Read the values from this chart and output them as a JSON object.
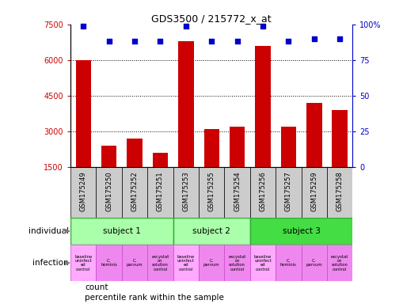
{
  "title": "GDS3500 / 215772_x_at",
  "samples": [
    "GSM175249",
    "GSM175250",
    "GSM175252",
    "GSM175251",
    "GSM175253",
    "GSM175255",
    "GSM175254",
    "GSM175256",
    "GSM175257",
    "GSM175259",
    "GSM175258"
  ],
  "counts": [
    6000,
    2400,
    2700,
    2100,
    6800,
    3100,
    3200,
    6600,
    3200,
    4200,
    3900
  ],
  "percentile_ranks": [
    99,
    88,
    88,
    88,
    99,
    88,
    88,
    99,
    88,
    90,
    90
  ],
  "ylim_left": [
    1500,
    7500
  ],
  "ylim_right": [
    0,
    100
  ],
  "yticks_left": [
    1500,
    3000,
    4500,
    6000,
    7500
  ],
  "yticks_right": [
    0,
    25,
    50,
    75,
    100
  ],
  "bar_color": "#cc0000",
  "dot_color": "#0000cc",
  "gridlines_at": [
    3000,
    4500,
    6000
  ],
  "subjects": [
    {
      "label": "subject 1",
      "start": 0,
      "end": 4,
      "color": "#aaffaa"
    },
    {
      "label": "subject 2",
      "start": 4,
      "end": 7,
      "color": "#aaffaa"
    },
    {
      "label": "subject 3",
      "start": 7,
      "end": 11,
      "color": "#44dd44"
    }
  ],
  "infections": [
    {
      "label": "baseline\nuninfect\ned\ncontrol",
      "col": 0,
      "color": "#ffaaff"
    },
    {
      "label": "C.\nhominis",
      "col": 1,
      "color": "#ee88ee"
    },
    {
      "label": "C.\nparvum",
      "col": 2,
      "color": "#ee88ee"
    },
    {
      "label": "excystat\non\nsolution\ncontrol",
      "col": 3,
      "color": "#ee88ee"
    },
    {
      "label": "baseline\nuninfect\ned\ncontrol",
      "col": 4,
      "color": "#ffaaff"
    },
    {
      "label": "C.\nparvum",
      "col": 5,
      "color": "#ee88ee"
    },
    {
      "label": "excystat\non\nsolution\ncontrol",
      "col": 6,
      "color": "#ee88ee"
    },
    {
      "label": "baseline\nuninfect\ned\ncontrol",
      "col": 7,
      "color": "#ffaaff"
    },
    {
      "label": "C.\nhominis",
      "col": 8,
      "color": "#ee88ee"
    },
    {
      "label": "C.\nparvum",
      "col": 9,
      "color": "#ee88ee"
    },
    {
      "label": "excystat\non\nsolution\ncontrol",
      "col": 10,
      "color": "#ee88ee"
    }
  ],
  "sample_box_color": "#cccccc",
  "subject_border_color": "#33aa33",
  "infection_border_color": "#cc44cc",
  "label_individual": "individual",
  "label_infection": "infection",
  "legend_items": [
    {
      "label": "count",
      "color": "#cc0000",
      "marker": "s"
    },
    {
      "label": "percentile rank within the sample",
      "color": "#0000cc",
      "marker": "s"
    }
  ]
}
